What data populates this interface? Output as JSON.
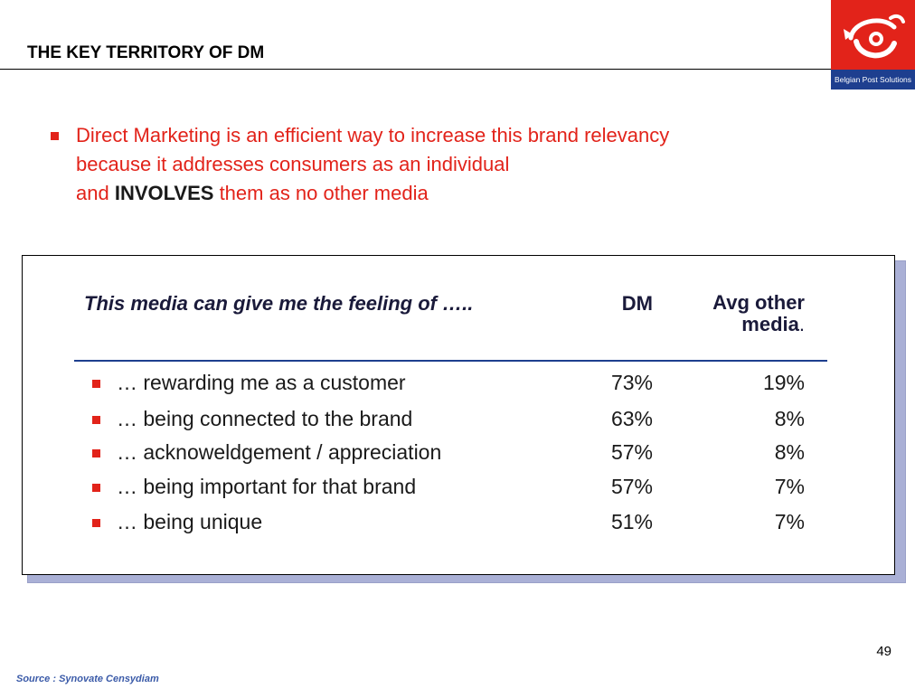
{
  "header": {
    "title": "THE KEY TERRITORY OF DM",
    "logo_text": "Belgian Post Solutions"
  },
  "intro": {
    "line1": "Direct Marketing is an efficient way to increase this brand relevancy",
    "line2": "because it addresses consumers as an individual",
    "line3_pre": "and ",
    "line3_strong": "INVOLVES",
    "line3_post": " them as no other media"
  },
  "table": {
    "heading": "This media can give me the feeling of …..",
    "col_dm": "DM",
    "col_avg_line1": "Avg other",
    "col_avg_line2": "media",
    "col_avg_dot": ".",
    "rows": [
      {
        "label": "… rewarding me as a customer",
        "dm": "73%",
        "avg": "19%"
      },
      {
        "label": "… being connected to the brand",
        "dm": "63%",
        "avg": "8%"
      },
      {
        "label": "… acknoweldgement / appreciation",
        "dm": "57%",
        "avg": "8%"
      },
      {
        "label": "… being important for that brand",
        "dm": "57%",
        "avg": "7%"
      },
      {
        "label": "… being unique",
        "dm": "51%",
        "avg": "7%"
      }
    ]
  },
  "footer": {
    "page_number": "49",
    "source": "Source : Synovate Censydiam"
  },
  "colors": {
    "accent_red": "#e2231a",
    "brand_blue": "#1e3f8f"
  }
}
